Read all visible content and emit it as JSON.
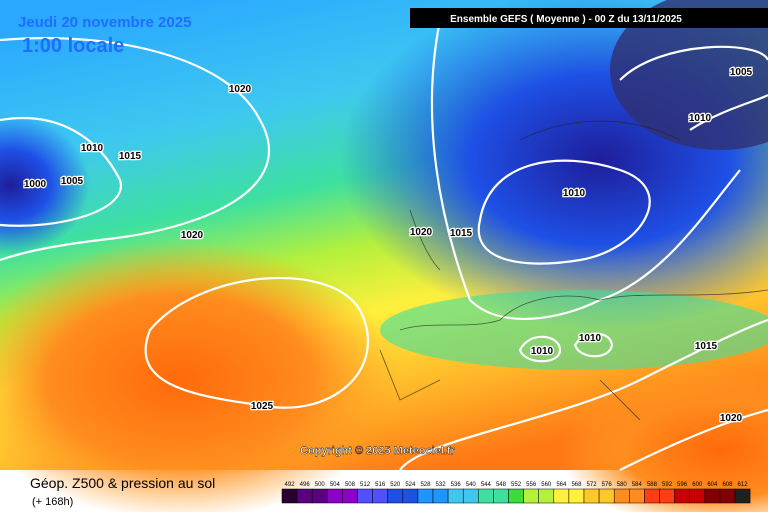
{
  "header": {
    "date": "Jeudi 20 novembre 2025",
    "time": "1:00 locale",
    "run": "Ensemble GEFS  ( Moyenne )  -  00 Z du 13/11/2025"
  },
  "copyright": "Copyright © 2025 Meteociel.fr",
  "footer": {
    "title": "Géop. Z500 & pression au sol",
    "lead": "(+ 168h)"
  },
  "isobar_labels": [
    1020,
    1010,
    1015,
    1000,
    1005,
    1020,
    1020,
    1015,
    1010,
    1005,
    1010,
    1010,
    1010,
    1015,
    1025,
    1020
  ],
  "colorbar": {
    "labels": [
      492,
      496,
      500,
      504,
      508,
      512,
      516,
      520,
      524,
      528,
      532,
      536,
      540,
      544,
      548,
      552,
      556,
      560,
      564,
      568,
      572,
      576,
      580,
      584,
      588,
      592,
      596,
      600,
      604,
      608,
      612
    ]
  }
}
